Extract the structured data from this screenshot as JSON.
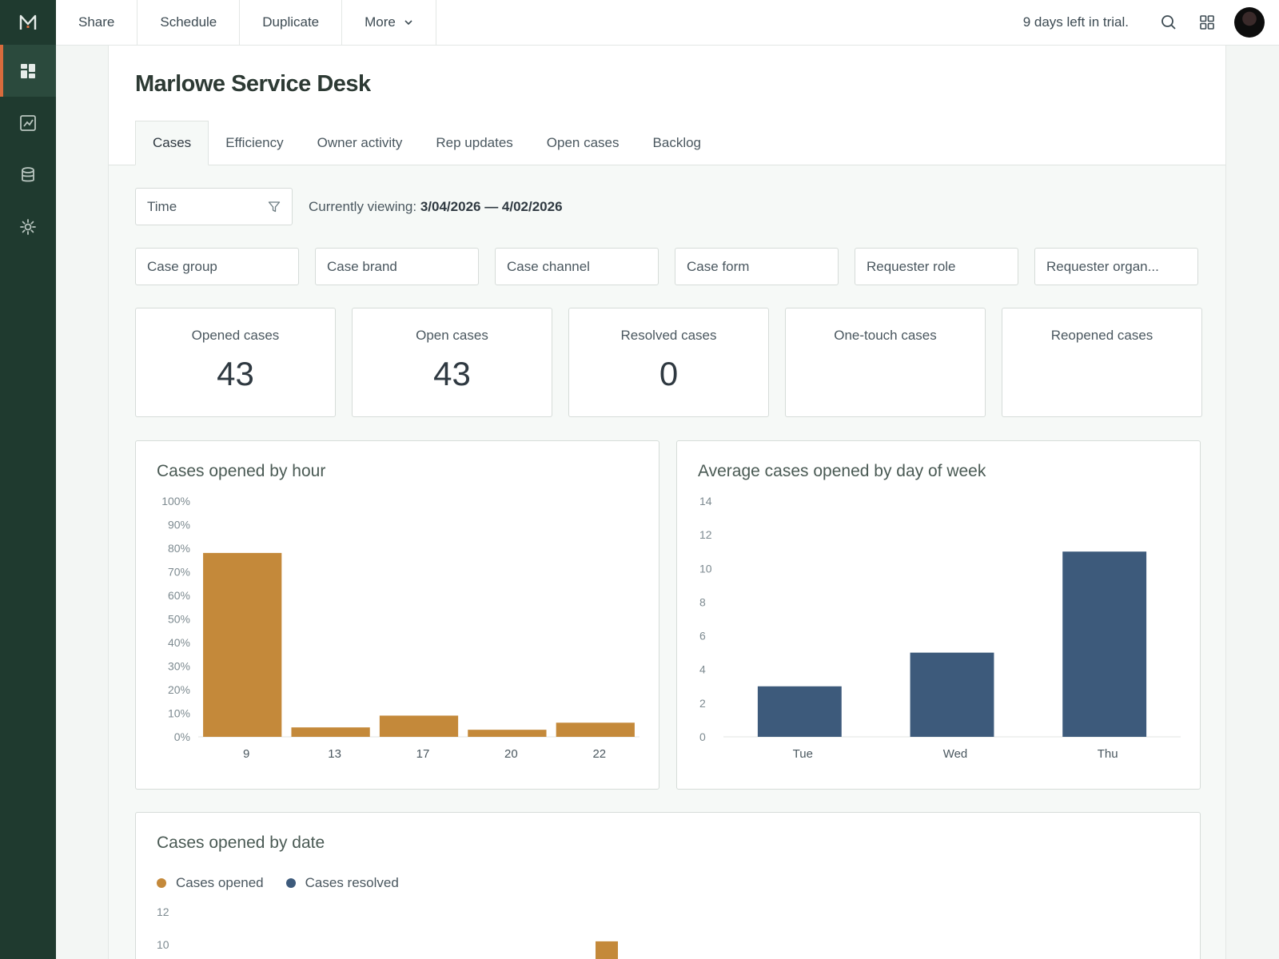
{
  "app": {
    "sidebar": {
      "items": [
        {
          "name": "dashboard",
          "icon": "dashboard-icon",
          "active": true
        },
        {
          "name": "reports",
          "icon": "line-chart-icon",
          "active": false
        },
        {
          "name": "datasets",
          "icon": "database-icon",
          "active": false
        },
        {
          "name": "settings",
          "icon": "gear-icon",
          "active": false
        }
      ]
    },
    "topbar": {
      "buttons": {
        "share": "Share",
        "schedule": "Schedule",
        "duplicate": "Duplicate",
        "more": "More"
      },
      "trial": "9 days left in trial."
    }
  },
  "page": {
    "title": "Marlowe Service Desk",
    "tabs": [
      "Cases",
      "Efficiency",
      "Owner activity",
      "Rep updates",
      "Open cases",
      "Backlog"
    ],
    "time_filter": {
      "label": "Time"
    },
    "viewing": {
      "prefix": "Currently viewing:",
      "range": "3/04/2026 — 4/02/2026"
    },
    "filters": [
      "Case group",
      "Case brand",
      "Case channel",
      "Case form",
      "Requester role",
      "Requester organ..."
    ],
    "kpis": [
      {
        "label": "Opened cases",
        "value": "43"
      },
      {
        "label": "Open cases",
        "value": "43"
      },
      {
        "label": "Resolved cases",
        "value": "0"
      },
      {
        "label": "One-touch cases",
        "value": ""
      },
      {
        "label": "Reopened cases",
        "value": ""
      }
    ]
  },
  "colors": {
    "opened": "#c4893a",
    "resolved": "#3d5a7b",
    "sidebar": "#1f3a2f",
    "accent": "#d96b3d"
  },
  "chart_data": [
    {
      "type": "bar",
      "title": "Cases opened by hour",
      "categories": [
        "9",
        "13",
        "17",
        "20",
        "22"
      ],
      "values": [
        78,
        4,
        9,
        3,
        6
      ],
      "yticks": [
        "0%",
        "10%",
        "20%",
        "30%",
        "40%",
        "50%",
        "60%",
        "70%",
        "80%",
        "90%",
        "100%"
      ],
      "ylim": [
        0,
        100
      ],
      "color": "#c4893a"
    },
    {
      "type": "bar",
      "title": "Average cases opened by day of week",
      "categories": [
        "Tue",
        "Wed",
        "Thu"
      ],
      "values": [
        3,
        5,
        11
      ],
      "yticks": [
        "0",
        "2",
        "4",
        "6",
        "8",
        "10",
        "12",
        "14"
      ],
      "ylim": [
        0,
        14
      ],
      "color": "#3d5a7b"
    },
    {
      "type": "bar",
      "title": "Cases opened by date",
      "legend": [
        "Cases opened",
        "Cases resolved"
      ],
      "yticks_visible": [
        "12",
        "10"
      ],
      "ylim": [
        0,
        12
      ],
      "partial_bar_value": 10.2,
      "color": "#c4893a"
    }
  ]
}
